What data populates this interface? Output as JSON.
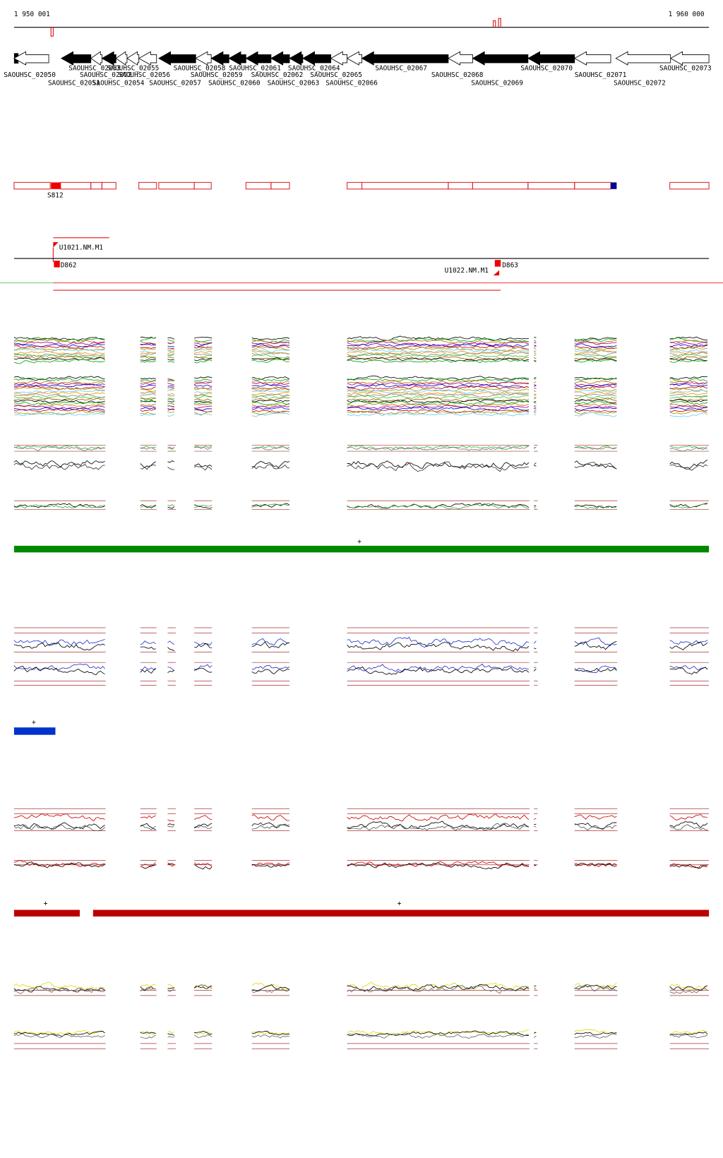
{
  "ruler": {
    "start": "1 950 001",
    "end": "1 960 000"
  },
  "genes": [
    "SAOUHSC_02050",
    "SAOUHSC_02051",
    "SAOUHSC_02052",
    "SAOUHSC_02053",
    "SAOUHSC_02054",
    "SAOUHSC_02055",
    "SAOUHSC_02056",
    "SAOUHSC_02057",
    "SAOUHSC_02058",
    "SAOUHSC_02059",
    "SAOUHSC_02060",
    "SAOUHSC_02061",
    "SAOUHSC_02062",
    "SAOUHSC_02063",
    "SAOUHSC_02064",
    "SAOUHSC_02065",
    "SAOUHSC_02066",
    "SAOUHSC_02067",
    "SAOUHSC_02068",
    "SAOUHSC_02069",
    "SAOUHSC_02070",
    "SAOUHSC_02071",
    "SAOUHSC_02072",
    "SAOUHSC_02073"
  ],
  "features": {
    "segment_label": "S812",
    "regions": [
      "U1021.NM.M1",
      "U1022.NM.M1"
    ],
    "probes": [
      "D862",
      "D863"
    ]
  },
  "markers": [
    "+",
    "+",
    "+",
    "+"
  ]
}
